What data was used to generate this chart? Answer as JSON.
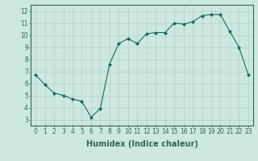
{
  "x": [
    0,
    1,
    2,
    3,
    4,
    5,
    6,
    7,
    8,
    9,
    10,
    11,
    12,
    13,
    14,
    15,
    16,
    17,
    18,
    19,
    20,
    21,
    22,
    23
  ],
  "y": [
    6.7,
    5.9,
    5.2,
    5.0,
    4.7,
    4.5,
    3.2,
    3.9,
    7.6,
    9.3,
    9.7,
    9.3,
    10.1,
    10.2,
    10.2,
    11.0,
    10.9,
    11.1,
    11.6,
    11.7,
    11.7,
    10.3,
    9.0,
    6.7
  ],
  "line_color": "#1a6b5a",
  "marker": "D",
  "marker_size": 2,
  "bg_color": "#cce8e0",
  "grid_color": "#b0cfc8",
  "xlabel": "Humidex (Indice chaleur)",
  "xlim": [
    -0.5,
    23.5
  ],
  "ylim": [
    2.5,
    12.5
  ],
  "yticks": [
    3,
    4,
    5,
    6,
    7,
    8,
    9,
    10,
    11,
    12
  ],
  "xticks": [
    0,
    1,
    2,
    3,
    4,
    5,
    6,
    7,
    8,
    9,
    10,
    11,
    12,
    13,
    14,
    15,
    16,
    17,
    18,
    19,
    20,
    21,
    22,
    23
  ],
  "tick_fontsize": 5.5,
  "xlabel_fontsize": 7,
  "spine_color": "#336655"
}
